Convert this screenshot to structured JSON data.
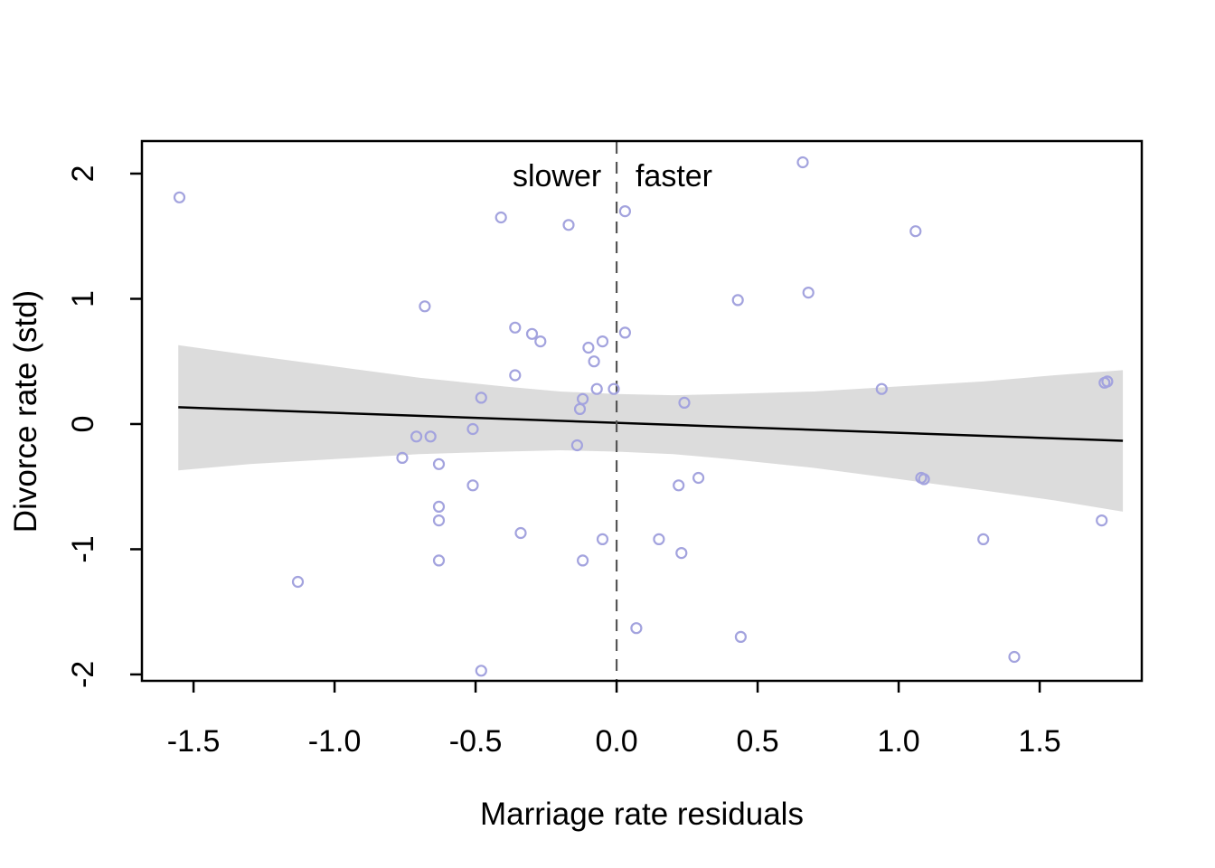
{
  "figure": {
    "background": "#ffffff"
  },
  "chart_data": {
    "type": "scatter",
    "title": "",
    "xlabel": "Marriage rate residuals",
    "ylabel": "Divorce rate (std)",
    "xlim": [
      -1.683,
      1.862
    ],
    "ylim": [
      -2.051,
      2.26
    ],
    "x_ticks": [
      -1.5,
      -1.0,
      -0.5,
      0.0,
      0.5,
      1.0,
      1.5
    ],
    "x_tick_labels": [
      "-1.5",
      "-1.0",
      "-0.5",
      "0.0",
      "0.5",
      "1.0",
      "1.5"
    ],
    "y_ticks": [
      -2,
      -1,
      0,
      1,
      2
    ],
    "y_tick_labels": [
      "-2",
      "-1",
      "0",
      "1",
      "2"
    ],
    "grid": false,
    "legend": "none",
    "annotations": [
      {
        "text": "slower",
        "x": -0.054,
        "y": 1.9,
        "align": "end"
      },
      {
        "text": "faster",
        "x": 0.067,
        "y": 1.9,
        "align": "start"
      }
    ],
    "zero_line_x": 0.0,
    "points": [
      [
        -1.55,
        1.81
      ],
      [
        -0.41,
        1.65
      ],
      [
        -0.17,
        1.59
      ],
      [
        0.03,
        1.7
      ],
      [
        0.66,
        2.09
      ],
      [
        1.06,
        1.54
      ],
      [
        -0.68,
        0.94
      ],
      [
        -0.36,
        0.77
      ],
      [
        -0.3,
        0.72
      ],
      [
        -0.27,
        0.66
      ],
      [
        -0.1,
        0.61
      ],
      [
        -0.05,
        0.66
      ],
      [
        0.03,
        0.73
      ],
      [
        -0.08,
        0.5
      ],
      [
        -0.36,
        0.39
      ],
      [
        -0.07,
        0.28
      ],
      [
        -0.01,
        0.28
      ],
      [
        -0.48,
        0.21
      ],
      [
        -0.12,
        0.2
      ],
      [
        -0.13,
        0.12
      ],
      [
        0.24,
        0.17
      ],
      [
        0.43,
        0.99
      ],
      [
        0.68,
        1.05
      ],
      [
        0.94,
        0.28
      ],
      [
        1.73,
        0.33
      ],
      [
        1.74,
        0.34
      ],
      [
        -0.76,
        -0.27
      ],
      [
        -0.71,
        -0.1
      ],
      [
        -0.66,
        -0.1
      ],
      [
        -0.63,
        -0.32
      ],
      [
        -0.51,
        -0.04
      ],
      [
        -0.51,
        -0.49
      ],
      [
        -0.63,
        -0.66
      ],
      [
        -0.63,
        -0.77
      ],
      [
        -0.63,
        -1.09
      ],
      [
        -1.13,
        -1.26
      ],
      [
        -0.48,
        -1.97
      ],
      [
        -0.14,
        -0.17
      ],
      [
        -0.34,
        -0.87
      ],
      [
        -0.12,
        -1.09
      ],
      [
        -0.05,
        -0.92
      ],
      [
        0.15,
        -0.92
      ],
      [
        0.22,
        -0.49
      ],
      [
        0.29,
        -0.43
      ],
      [
        0.23,
        -1.03
      ],
      [
        0.07,
        -1.63
      ],
      [
        0.44,
        -1.7
      ],
      [
        1.08,
        -0.43
      ],
      [
        1.09,
        -0.44
      ],
      [
        1.3,
        -0.92
      ],
      [
        1.72,
        -0.77
      ],
      [
        1.41,
        -1.86
      ]
    ],
    "regression_line": {
      "x": [
        -1.554,
        1.795
      ],
      "y": [
        0.134,
        -0.134
      ]
    },
    "confidence_band": {
      "x": [
        -1.554,
        -1.3,
        -1.0,
        -0.7,
        -0.4,
        -0.2,
        0.0,
        0.2,
        0.4,
        0.7,
        1.0,
        1.3,
        1.554,
        1.795
      ],
      "upper": [
        0.63,
        0.55,
        0.46,
        0.37,
        0.3,
        0.26,
        0.24,
        0.23,
        0.24,
        0.26,
        0.3,
        0.34,
        0.39,
        0.43
      ],
      "lower": [
        -0.37,
        -0.32,
        -0.28,
        -0.24,
        -0.22,
        -0.21,
        -0.22,
        -0.24,
        -0.28,
        -0.35,
        -0.44,
        -0.53,
        -0.61,
        -0.7
      ]
    },
    "colors": {
      "point": "#a3a3de",
      "band": "#dcdcdc",
      "regression_line": "#000000",
      "zero_line": "#555555",
      "axis": "#000000",
      "text": "#000000"
    }
  }
}
